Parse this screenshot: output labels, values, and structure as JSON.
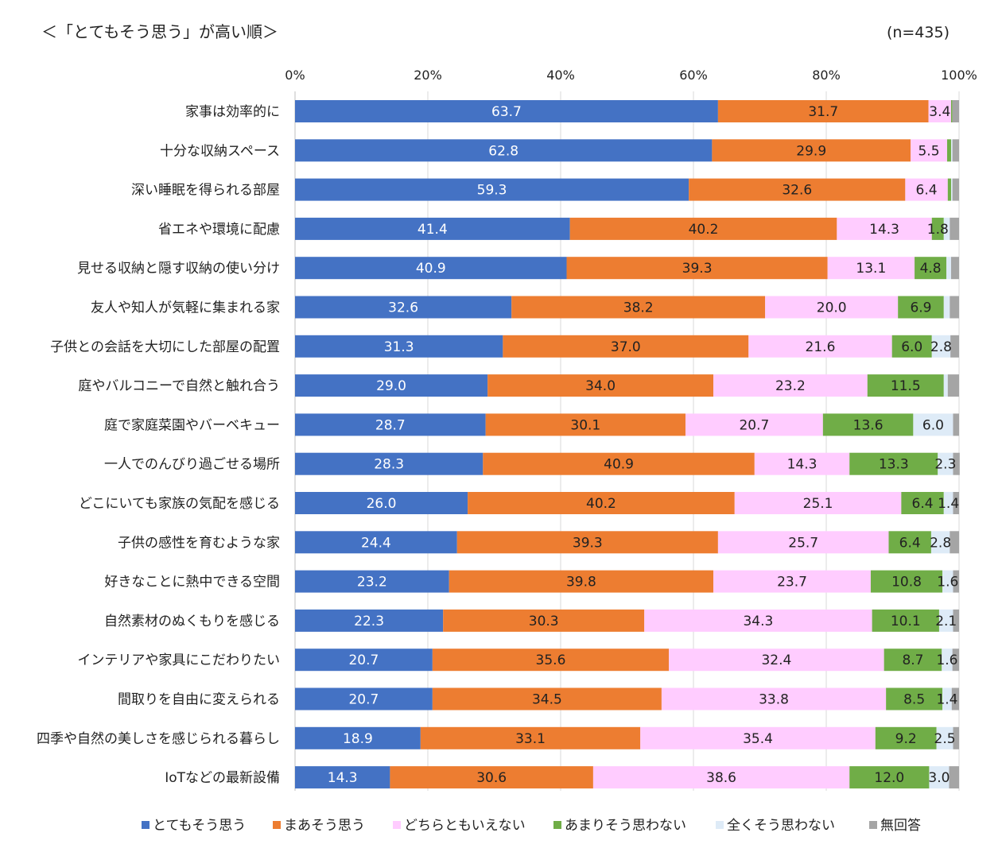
{
  "header": {
    "title": "＜「とてもそう思う」が高い順＞",
    "n_label": "(n=435)"
  },
  "colors": {
    "series": [
      "#4472c4",
      "#ed7d31",
      "#ffccff",
      "#70ad47",
      "#deebf7",
      "#a5a5a5"
    ],
    "grid": "#d9d9d9",
    "axis": "#bfbfbf",
    "text": "#222222"
  },
  "chart_data": {
    "type": "bar",
    "orientation": "horizontal-stacked-100",
    "xlim": [
      0,
      100
    ],
    "x_ticks": [
      "0%",
      "20%",
      "40%",
      "60%",
      "80%",
      "100%"
    ],
    "tick_values": [
      0,
      20,
      40,
      60,
      80,
      100
    ],
    "legend_position": "bottom",
    "grid": true,
    "categories": [
      "家事は効率的に",
      "十分な収納スペース",
      "深い睡眠を得られる部屋",
      "省エネや環境に配慮",
      "見せる収納と隠す収納の使い分け",
      "友人や知人が気軽に集まれる家",
      "子供との会話を大切にした部屋の配置",
      "庭やバルコニーで自然と触れ合う",
      "庭で家庭菜園やバーベキュー",
      "一人でのんびり過ごせる場所",
      "どこにいても家族の気配を感じる",
      "子供の感性を育むような家",
      "好きなことに熱中できる空間",
      "自然素材のぬくもりを感じる",
      "インテリアや家具にこだわりたい",
      "間取りを自由に変えられる",
      "四季や自然の美しさを感じられる暮らし",
      "IoTなどの最新設備"
    ],
    "series": [
      {
        "name": "とてもそう思う",
        "values": [
          63.7,
          62.8,
          59.3,
          41.4,
          40.9,
          32.6,
          31.3,
          29.0,
          28.7,
          28.3,
          26.0,
          24.4,
          23.2,
          22.3,
          20.7,
          20.7,
          18.9,
          14.3
        ],
        "labels": [
          "63.7",
          "62.8",
          "59.3",
          "41.4",
          "40.9",
          "32.6",
          "31.3",
          "29.0",
          "28.7",
          "28.3",
          "26.0",
          "24.4",
          "23.2",
          "22.3",
          "20.7",
          "20.7",
          "18.9",
          "14.3"
        ]
      },
      {
        "name": "まあそう思う",
        "values": [
          31.7,
          29.9,
          32.6,
          40.2,
          39.3,
          38.2,
          37.0,
          34.0,
          30.1,
          40.9,
          40.2,
          39.3,
          39.8,
          30.3,
          35.6,
          34.5,
          33.1,
          30.6
        ],
        "labels": [
          "31.7",
          "29.9",
          "32.6",
          "40.2",
          "39.3",
          "38.2",
          "37.0",
          "34.0",
          "30.1",
          "40.9",
          "40.2",
          "39.3",
          "39.8",
          "30.3",
          "35.6",
          "34.5",
          "33.1",
          "30.6"
        ]
      },
      {
        "name": "どちらともいえない",
        "values": [
          3.4,
          5.5,
          6.4,
          14.3,
          13.1,
          20.0,
          21.6,
          23.2,
          20.7,
          14.3,
          25.1,
          25.7,
          23.7,
          34.3,
          32.4,
          33.8,
          35.4,
          38.6
        ],
        "labels": [
          "3.4",
          "5.5",
          "6.4",
          "14.3",
          "13.1",
          "20.0",
          "21.6",
          "23.2",
          "20.7",
          "14.3",
          "25.1",
          "25.7",
          "23.7",
          "34.3",
          "32.4",
          "33.8",
          "35.4",
          "38.6"
        ]
      },
      {
        "name": "あまりそう思わない",
        "values": [
          0.2,
          0.6,
          0.5,
          1.8,
          4.8,
          6.9,
          6.0,
          11.5,
          13.6,
          13.3,
          6.4,
          6.4,
          10.8,
          10.1,
          8.7,
          8.5,
          9.2,
          12.0
        ],
        "labels": [
          "",
          "",
          "",
          "1.8",
          "4.8",
          "6.9",
          "6.0",
          "11.5",
          "13.6",
          "13.3",
          "6.4",
          "6.4",
          "10.8",
          "10.1",
          "8.7",
          "8.5",
          "9.2",
          "12.0"
        ]
      },
      {
        "name": "全くそう思わない",
        "values": [
          0.0,
          0.2,
          0.2,
          0.9,
          0.7,
          0.9,
          2.8,
          0.6,
          6.0,
          2.3,
          1.4,
          2.8,
          1.6,
          2.1,
          1.6,
          1.4,
          2.5,
          3.0
        ],
        "labels": [
          "",
          "",
          "",
          "",
          "",
          "",
          "2.8",
          "",
          "6.0",
          "2.3",
          "1.4",
          "2.8",
          "1.6",
          "2.1",
          "1.6",
          "1.4",
          "2.5",
          "3.0"
        ]
      },
      {
        "name": "無回答",
        "values": [
          1.0,
          1.0,
          1.0,
          1.4,
          1.2,
          1.4,
          1.3,
          1.7,
          0.9,
          1.0,
          0.9,
          1.4,
          0.9,
          0.9,
          1.0,
          1.1,
          0.9,
          1.5
        ],
        "labels": [
          "",
          "",
          "",
          "",
          "",
          "",
          "",
          "",
          "",
          "",
          "",
          "",
          "",
          "",
          "",
          "",
          "",
          ""
        ]
      }
    ]
  }
}
